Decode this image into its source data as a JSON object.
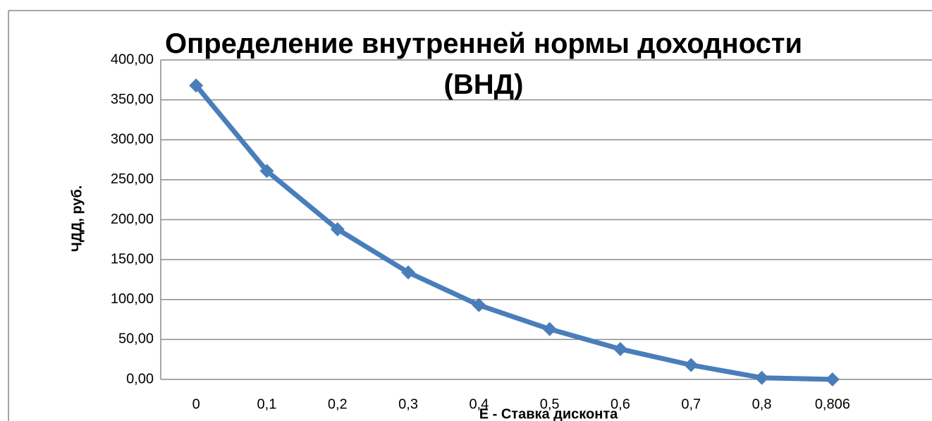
{
  "chart_data": {
    "type": "line",
    "title": "Определение внутренней нормы доходности (ВНД)",
    "x_label": "E - Ставка дисконта",
    "y_label": "ЧДД,  руб.",
    "categories": [
      "0",
      "0,1",
      "0,2",
      "0,3",
      "0,4",
      "0,5",
      "0,6",
      "0,7",
      "0,8",
      "0,806"
    ],
    "series": [
      {
        "name": "ЧДД",
        "color": "#4a7ebb",
        "values": [
          368,
          261,
          188,
          134,
          93,
          63,
          38,
          18,
          2,
          0
        ]
      }
    ],
    "ylim": [
      0,
      400
    ],
    "yticks": [
      {
        "value": 0,
        "label": "0,00"
      },
      {
        "value": 50,
        "label": "50,00"
      },
      {
        "value": 100,
        "label": "100,00"
      },
      {
        "value": 150,
        "label": "150,00"
      },
      {
        "value": 200,
        "label": "200,00"
      },
      {
        "value": 250,
        "label": "250,00"
      },
      {
        "value": 300,
        "label": "300,00"
      },
      {
        "value": 350,
        "label": "350,00"
      },
      {
        "value": 400,
        "label": "400,00"
      }
    ],
    "grid": true
  }
}
